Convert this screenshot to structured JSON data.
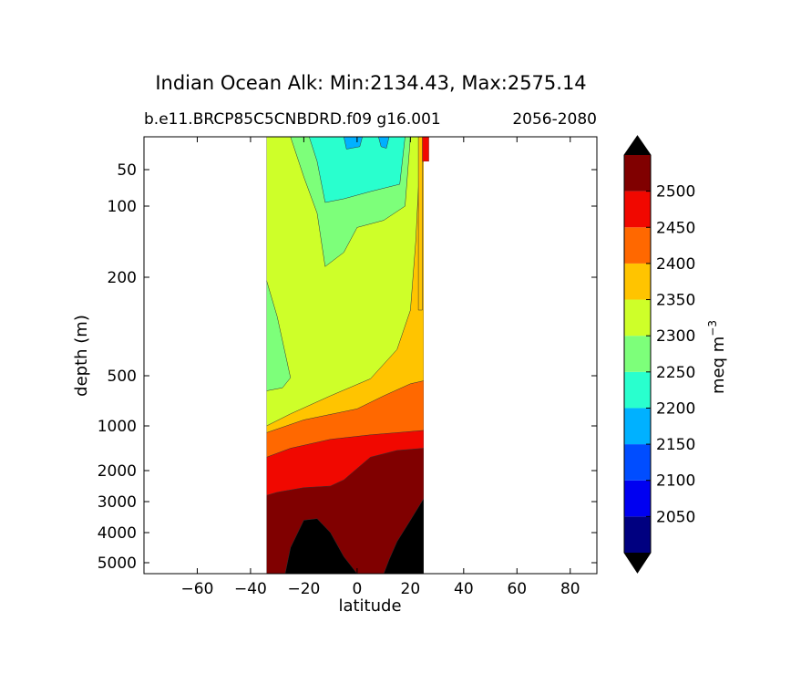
{
  "chart_data": {
    "type": "heatmap",
    "title": "Indian Ocean Alk: Min:2134.43, Max:2575.14",
    "subtitle_left": "b.e11.BRCP85C5CNBDRD.f09 g16.001",
    "subtitle_right": "2056-2080",
    "xlabel": "latitude",
    "ylabel": "depth (m)",
    "xlim": [
      -80,
      90
    ],
    "ylim": [
      5500,
      10
    ],
    "yscale": "depth-stretched (log-like)",
    "x_ticks": [
      "−60",
      "−40",
      "−20",
      "0",
      "20",
      "40",
      "60",
      "80"
    ],
    "x_tick_values": [
      -60,
      -40,
      -20,
      0,
      20,
      40,
      60,
      80
    ],
    "y_ticks": [
      "50",
      "100",
      "200",
      "500",
      "1000",
      "2000",
      "3000",
      "4000",
      "5000"
    ],
    "y_tick_values": [
      50,
      100,
      200,
      500,
      1000,
      2000,
      3000,
      4000,
      5000
    ],
    "colorbar": {
      "label": "meq m",
      "label_superscript": "−3",
      "levels": [
        2000,
        2050,
        2100,
        2150,
        2200,
        2250,
        2300,
        2350,
        2400,
        2450,
        2500,
        2550
      ],
      "tick_labels": [
        "2050",
        "2100",
        "2150",
        "2200",
        "2250",
        "2300",
        "2350",
        "2400",
        "2450",
        "2500"
      ],
      "tick_values": [
        2050,
        2100,
        2150,
        2200,
        2250,
        2300,
        2350,
        2400,
        2450,
        2500
      ],
      "colors": [
        "#000080",
        "#0000f1",
        "#004dff",
        "#00b1ff",
        "#29ffce",
        "#7dff7a",
        "#ceff29",
        "#ffc400",
        "#ff6800",
        "#f10800",
        "#800000"
      ],
      "extend": "both",
      "under_color": "#000000",
      "over_color": "#000000"
    },
    "field_description_only": true,
    "data_region_lat": [
      -34,
      26
    ],
    "land_color": "#ffffff",
    "below_range_fill": "#000000"
  }
}
